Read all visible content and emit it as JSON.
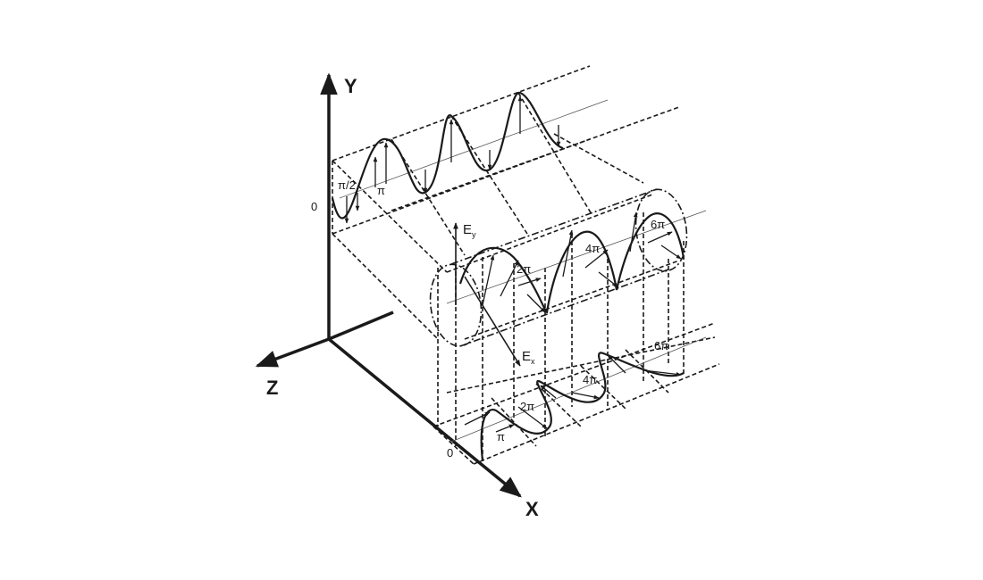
{
  "axes": {
    "x": "X",
    "y": "Y",
    "z": "Z"
  },
  "field_components": {
    "ey": "E",
    "ey_sub": "y",
    "ex": "E",
    "ex_sub": "x"
  },
  "phase_labels": {
    "top_zero": "0",
    "top_half_pi": "π/2",
    "top_pi": "π",
    "mid_2pi": "2π",
    "mid_4pi": "4π",
    "mid_6pi": "6π",
    "bottom_zero": "0",
    "bottom_pi": "π",
    "bottom_2pi": "2π",
    "bottom_4pi": "4π",
    "bottom_6pi": "6π"
  },
  "colors": {
    "ink": "#1a1a1a",
    "background": "#ffffff"
  }
}
